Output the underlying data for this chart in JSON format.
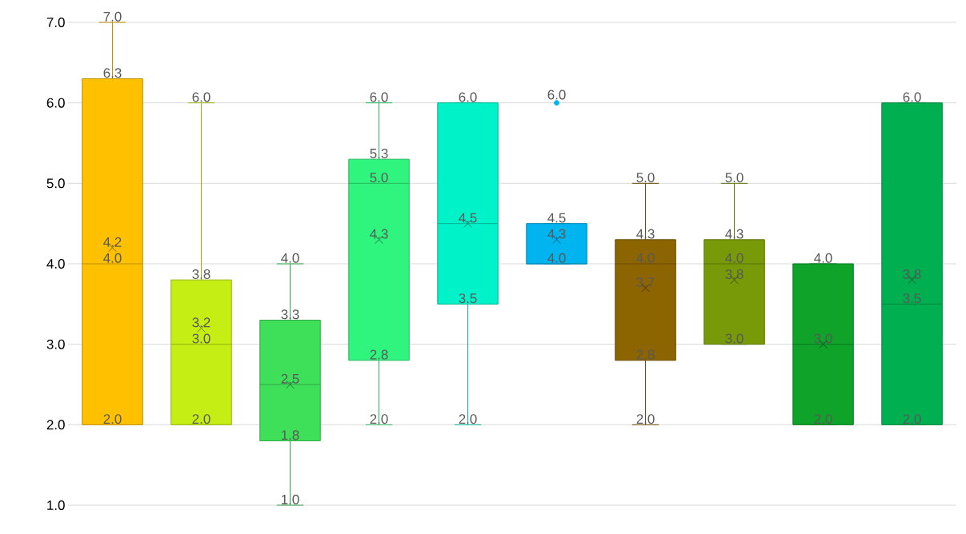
{
  "chart_data": {
    "type": "box",
    "categories": [
      null,
      null,
      null,
      null,
      null,
      null,
      null,
      null,
      null,
      null
    ],
    "colors": [
      "#ffc000",
      "#c5ef14",
      "#3ee05a",
      "#2ff57e",
      "#00f2c8",
      "#00b4f0",
      "#8c6400",
      "#789a08",
      "#0fa32a",
      "#00b050"
    ],
    "boxes": [
      {
        "low": 2.0,
        "q1": 2.0,
        "median": 4.0,
        "q3": 6.3,
        "high": 7.0,
        "mean": 4.2
      },
      {
        "low": 2.0,
        "q1": 2.0,
        "median": 3.0,
        "q3": 3.8,
        "high": 6.0,
        "mean": 3.2
      },
      {
        "low": 1.0,
        "q1": 1.8,
        "median": 2.5,
        "q3": 3.3,
        "high": 4.0,
        "mean": 2.5
      },
      {
        "low": 2.0,
        "q1": 2.8,
        "median": 5.0,
        "q3": 5.3,
        "high": 6.0,
        "mean": 4.3
      },
      {
        "low": 2.0,
        "q1": 3.5,
        "median": 4.5,
        "q3": 6.0,
        "high": 6.0,
        "mean": 4.5
      },
      {
        "low": 4.0,
        "q1": 4.0,
        "median": 4.0,
        "q3": 4.5,
        "high": 4.5,
        "mean": 4.3,
        "outliers": [
          6.0
        ]
      },
      {
        "low": 2.0,
        "q1": 2.8,
        "median": 4.0,
        "q3": 4.3,
        "high": 5.0,
        "mean": 3.7
      },
      {
        "low": 3.0,
        "q1": 3.0,
        "median": 4.0,
        "q3": 4.3,
        "high": 5.0,
        "mean": 3.8
      },
      {
        "low": 2.0,
        "q1": 2.0,
        "median": 3.0,
        "q3": 4.0,
        "high": 4.0,
        "mean": 3.0
      },
      {
        "low": 2.0,
        "q1": 2.0,
        "median": 3.5,
        "q3": 6.0,
        "high": 6.0,
        "mean": 3.8
      }
    ],
    "annotations": [
      "4.2",
      {
        "text": "7.0",
        "y": 7.0
      },
      {
        "text": "6.3",
        "y": 6.3
      },
      {
        "text": "4.0",
        "y": 4.0
      },
      {
        "text": "2.0",
        "y": 2.0
      },
      "3.2",
      {
        "text": "6.0",
        "y": 6.0
      },
      {
        "text": "3.8",
        "y": 3.8
      },
      {
        "text": "3.0",
        "y": 3.0
      },
      {
        "text": "2.0",
        "y": 2.0
      },
      "2.5",
      {
        "text": "4.0",
        "y": 4.0
      },
      {
        "text": "3.3",
        "y": 3.3
      },
      {
        "text": "1.8",
        "y": 1.8
      },
      {
        "text": "1.0",
        "y": 1.0
      },
      "4.3",
      {
        "text": "6.0",
        "y": 6.0
      },
      {
        "text": "5.3",
        "y": 5.3
      },
      {
        "text": "5.0",
        "y": 5.0
      },
      {
        "text": "2.8",
        "y": 2.8
      },
      {
        "text": "2.0",
        "y": 2.0
      },
      "4.5",
      {
        "text": "6.0",
        "y": 6.0
      },
      {
        "text": "3.5",
        "y": 3.5
      },
      {
        "text": "2.0",
        "y": 2.0
      },
      "4.3",
      "6.0",
      {
        "text": "4.5",
        "y": 4.5
      },
      {
        "text": "4.0",
        "y": 4.0
      },
      "3.7",
      {
        "text": "5.0",
        "y": 5.0
      },
      {
        "text": "4.3",
        "y": 4.3
      },
      {
        "text": "4.0",
        "y": 4.0
      },
      {
        "text": "2.8",
        "y": 2.8
      },
      {
        "text": "2.0",
        "y": 2.0
      },
      "3.8",
      {
        "text": "5.0",
        "y": 5.0
      },
      {
        "text": "4.3",
        "y": 4.3
      },
      {
        "text": "4.0",
        "y": 4.0
      },
      {
        "text": "3.0",
        "y": 3.0
      },
      "3.0",
      {
        "text": "2.0",
        "y": 2.0
      },
      {
        "text": "4.0",
        "y": 4.0
      },
      "3.8",
      {
        "text": "6.0",
        "y": 6.0
      },
      {
        "text": "3.5",
        "y": 3.5
      },
      {
        "text": "2.0",
        "y": 2.0
      }
    ],
    "ylim": [
      1,
      7
    ],
    "yticks": [
      {
        "value": 1,
        "label": "1.0"
      },
      {
        "value": 2,
        "label": "2.0"
      },
      {
        "value": 3,
        "label": "3.0"
      },
      {
        "value": 4,
        "label": "4.0"
      },
      {
        "value": 5,
        "label": "5.0"
      },
      {
        "value": 6,
        "label": "6.0"
      },
      {
        "value": 7,
        "label": "7.0"
      }
    ],
    "grid": "y",
    "tick_labels": "y"
  }
}
